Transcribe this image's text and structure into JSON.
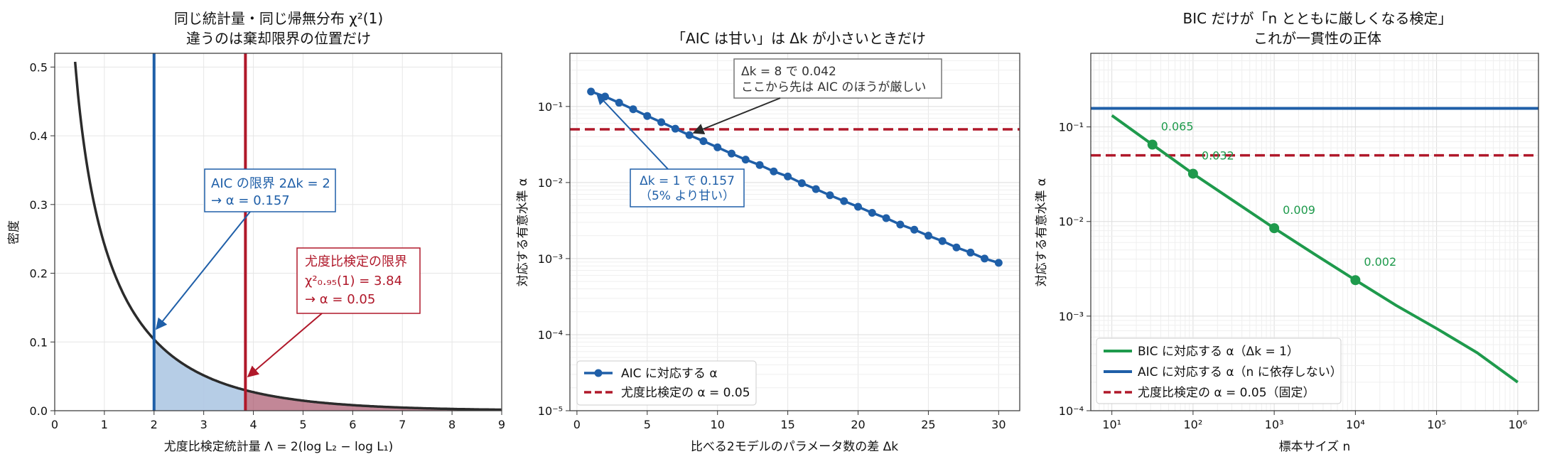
{
  "figure": {
    "colors": {
      "blue": "#1f5fa8",
      "red": "#b0182a",
      "green": "#1e9a4c",
      "dark": "#2b2b2b",
      "grid": "#e6e6e6"
    }
  },
  "chart_data": [
    {
      "type": "area",
      "title": "同じ統計量・同じ帰無分布 χ²(1)",
      "subtitle": "違うのは棄却限界の位置だけ",
      "xlabel": "尤度比検定統計量 Λ = 2(log L₂ − log L₁)",
      "ylabel": "密度",
      "xlim": [
        0,
        9
      ],
      "ylim": [
        0,
        0.52
      ],
      "xticks": [
        "0",
        "1",
        "2",
        "3",
        "4",
        "5",
        "6",
        "7",
        "8",
        "9"
      ],
      "yticks": [
        "0.0",
        "0.1",
        "0.2",
        "0.3",
        "0.4",
        "0.5"
      ],
      "grid": true,
      "series": [
        {
          "name": "",
          "values": "chi-square(1) density"
        }
      ],
      "critical_values": {
        "aic": 2,
        "lrt": 3.84
      },
      "annotations": {
        "aic": [
          "AIC の限界 2Δk = 2",
          "→ α = 0.157"
        ],
        "lrt": [
          "尤度比検定の限界",
          "χ²₀.₉₅(1) = 3.84",
          "→ α = 0.05"
        ]
      }
    },
    {
      "type": "line",
      "title": "「AIC は甘い」は Δk が小さいときだけ",
      "xlabel": "比べる2モデルのパラメータ数の差 Δk",
      "ylabel": "対応する有意水準 α",
      "xlim": [
        -0.5,
        31.5
      ],
      "ylim": [
        1e-05,
        0.5
      ],
      "yscale": "log",
      "xticks": [
        "0",
        "5",
        "10",
        "15",
        "20",
        "25",
        "30"
      ],
      "yticks": [
        "10⁻⁵",
        "10⁻⁴",
        "10⁻³",
        "10⁻²",
        "10⁻¹"
      ],
      "x": [
        1,
        2,
        3,
        4,
        5,
        6,
        7,
        8,
        9,
        10,
        11,
        12,
        13,
        14,
        15,
        16,
        17,
        18,
        19,
        20,
        21,
        22,
        23,
        24,
        25,
        26,
        27,
        28,
        29,
        30
      ],
      "series": [
        {
          "name": "AIC に対応する α",
          "values": [
            0.157,
            0.135,
            0.112,
            0.092,
            0.075,
            0.062,
            0.051,
            0.042,
            0.035,
            0.029,
            0.024,
            0.02,
            0.017,
            0.014,
            0.012,
            0.0098,
            0.0082,
            0.0068,
            0.0057,
            0.0048,
            0.004,
            0.0034,
            0.0028,
            0.0024,
            0.002,
            0.0017,
            0.0014,
            0.0012,
            0.001,
            0.00088
          ]
        }
      ],
      "reference_lines": [
        {
          "name": "尤度比検定の α = 0.05",
          "y": 0.05
        }
      ],
      "annotations": {
        "dk8": [
          "Δk = 8 で 0.042",
          "ここから先は AIC のほうが厳しい"
        ],
        "dk1": [
          "Δk = 1 で 0.157",
          "（5% より甘い）"
        ]
      },
      "legend": "lower-left"
    },
    {
      "type": "line",
      "title": "BIC だけが「n とともに厳しくなる検定」",
      "subtitle": "これが一貫性の正体",
      "xlabel": "標本サイズ n",
      "ylabel": "対応する有意水準 α",
      "xscale": "log",
      "yscale": "log",
      "xlim": [
        5.5,
        1800000
      ],
      "ylim": [
        0.0001,
        0.6
      ],
      "xticks": [
        "10¹",
        "10²",
        "10³",
        "10⁴",
        "10⁵",
        "10⁶"
      ],
      "yticks": [
        "10⁻⁴",
        "10⁻³",
        "10⁻²",
        "10⁻¹"
      ],
      "series": [
        {
          "name": "BIC に対応する α（Δk = 1）",
          "x": [
            10,
            31.6,
            100,
            316,
            1000,
            3162,
            10000,
            31623,
            100000,
            316228,
            1000000
          ],
          "values": [
            0.132,
            0.065,
            0.032,
            0.0165,
            0.0085,
            0.0045,
            0.0024,
            0.0013,
            0.00074,
            0.00041,
            0.0002
          ]
        },
        {
          "name": "AIC に対応する α（n に依存しない）",
          "y": 0.157
        },
        {
          "name": "尤度比検定の α = 0.05（固定）",
          "y": 0.05
        }
      ],
      "markers": [
        {
          "x": 31.6,
          "y": 0.065,
          "label": "0.065"
        },
        {
          "x": 100,
          "y": 0.032,
          "label": "0.032"
        },
        {
          "x": 1000,
          "y": 0.0085,
          "label": "0.009"
        },
        {
          "x": 10000,
          "y": 0.0024,
          "label": "0.002"
        }
      ],
      "legend": "lower-left"
    }
  ]
}
